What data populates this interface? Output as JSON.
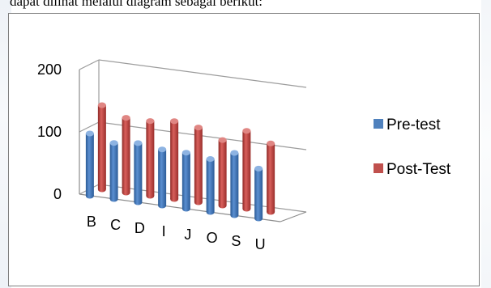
{
  "page": {
    "intro_text": "dapat dilihat melalui diagram sebagai berikut:"
  },
  "chart_data": {
    "type": "bar",
    "style": "3d-clustered-column",
    "categories": [
      "B",
      "C",
      "D",
      "I",
      "J",
      "O",
      "S",
      "U"
    ],
    "series": [
      {
        "name": "Pre-test",
        "color": "#4f81bd",
        "values": [
          100,
          90,
          95,
          90,
          90,
          85,
          100,
          80
        ]
      },
      {
        "name": "Post-Test",
        "color": "#c0504d",
        "values": [
          135,
          120,
          120,
          125,
          120,
          105,
          125,
          110
        ]
      }
    ],
    "ylim": [
      0,
      200
    ],
    "yticks": [
      0,
      100,
      200
    ],
    "title": "",
    "xlabel": "",
    "ylabel": "",
    "grid": true,
    "legend_position": "right"
  }
}
